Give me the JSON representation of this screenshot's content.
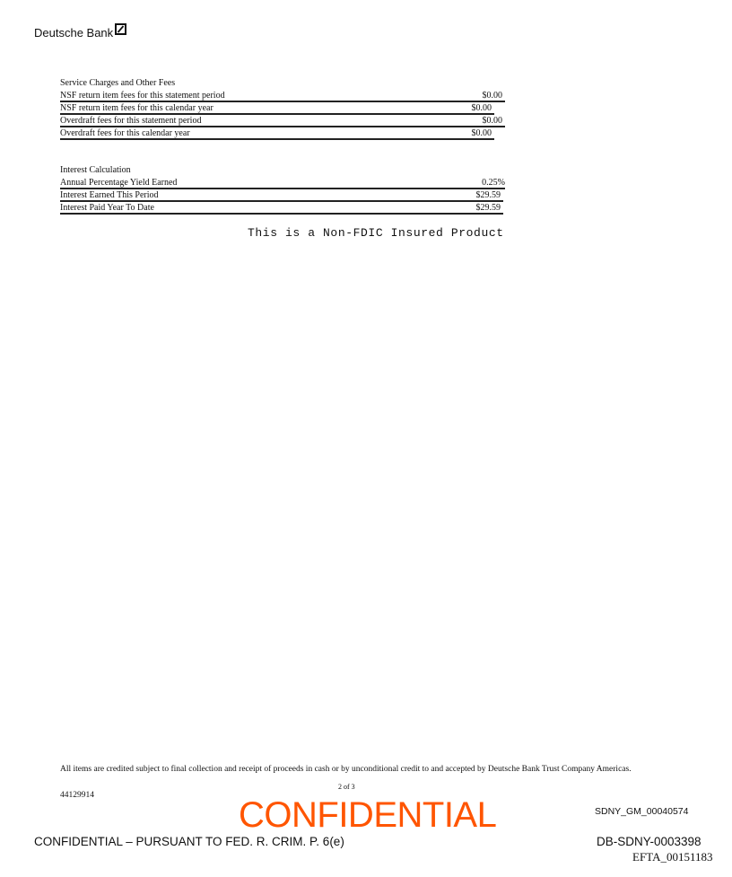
{
  "header": {
    "brand": "Deutsche Bank",
    "logo_icon": "deutsche-bank-slash-square-icon"
  },
  "service_charges": {
    "title": "Service Charges and Other Fees",
    "rows": [
      {
        "label": "NSF return item fees for this statement period",
        "value": "$0.00"
      },
      {
        "label": "NSF return item fees for this calendar year",
        "value": "$0.00"
      },
      {
        "label": "Overdraft fees for this statement period",
        "value": "$0.00"
      },
      {
        "label": "Overdraft fees for this calendar year",
        "value": "$0.00"
      }
    ]
  },
  "interest": {
    "title": "Interest Calculation",
    "rows": [
      {
        "label": "Annual Percentage Yield Earned",
        "value": "0.25%"
      },
      {
        "label": "Interest Earned This Period",
        "value": "$29.59"
      },
      {
        "label": "Interest Paid Year To Date",
        "value": "$29.59"
      }
    ]
  },
  "notice": "This is a Non-FDIC Insured Product",
  "footer": {
    "note": "All items are credited subject to final collection and receipt of proceeds in cash or by unconditional credit to and accepted by Deutsche Bank Trust Company Americas.",
    "account_number": "44129914",
    "page": "2 of 3",
    "stamp": "CONFIDENTIAL",
    "stamp_color": "#ff5500",
    "bates_sdny": "SDNY_GM_00040574",
    "confidential_notice": "CONFIDENTIAL – PURSUANT TO FED. R. CRIM. P. 6(e)",
    "bates_db": "DB-SDNY-0003398",
    "bates_efta": "EFTA_00151183"
  }
}
